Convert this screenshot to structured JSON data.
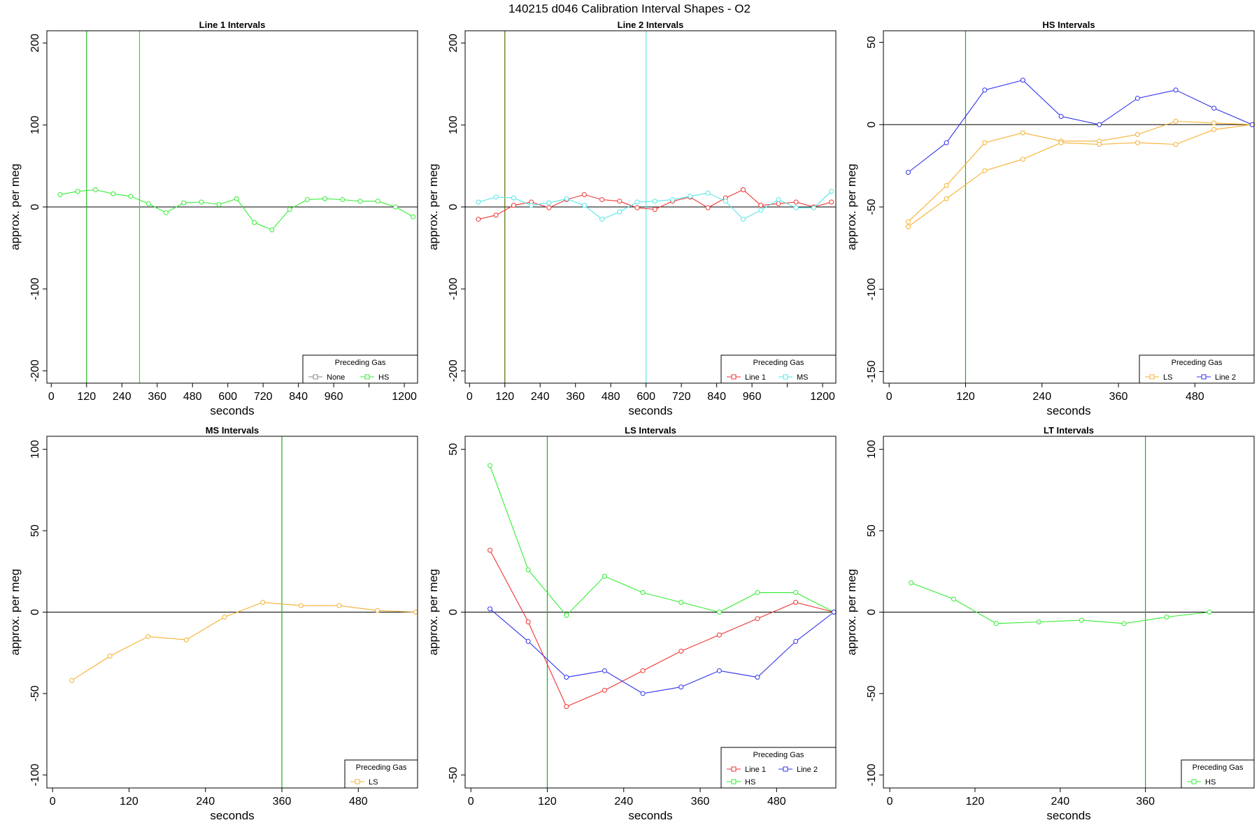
{
  "figure": {
    "title": "140215   d046   Calibration Interval Shapes - O2"
  },
  "chart_data": [
    {
      "type": "line",
      "title": "Line 1 Intervals",
      "xlabel": "seconds",
      "ylabel": "approx. per meg",
      "xlim": [
        -15,
        1245
      ],
      "ylim": [
        -215,
        215
      ],
      "xticks": [
        0,
        120,
        240,
        360,
        480,
        600,
        720,
        840,
        960,
        1080,
        1200
      ],
      "xtick_labels": [
        "0",
        "120",
        "240",
        "360",
        "480",
        "600",
        "720",
        "840",
        "960",
        "",
        "1200"
      ],
      "yticks": [
        -200,
        -100,
        0,
        100,
        200
      ],
      "zero_line": true,
      "vlines": [
        {
          "x": 120,
          "color": "#22bb22"
        },
        {
          "x": 300,
          "color": "#33dd33"
        }
      ],
      "legend": {
        "title": "Preceding Gas",
        "position": "bottom-right",
        "entries": [
          {
            "label": "None",
            "color": "#888888"
          },
          {
            "label": "HS",
            "color": "#33ee33"
          }
        ]
      },
      "series": [
        {
          "color": "#33ee33",
          "x": [
            30,
            90,
            150,
            210,
            270,
            330,
            390,
            450,
            510,
            570,
            630,
            690,
            750,
            810,
            870,
            930,
            990,
            1050,
            1110,
            1170,
            1230
          ],
          "y": [
            15,
            19,
            21,
            16,
            13,
            4,
            -7,
            5,
            6,
            3,
            10,
            -19,
            -28,
            -3,
            9,
            10,
            9,
            7,
            7,
            0,
            -12
          ]
        }
      ]
    },
    {
      "type": "line",
      "title": "Line 2 Intervals",
      "xlabel": "seconds",
      "ylabel": "approx. per meg",
      "xlim": [
        -15,
        1245
      ],
      "ylim": [
        -215,
        215
      ],
      "xticks": [
        0,
        120,
        240,
        360,
        480,
        600,
        720,
        840,
        960,
        1080,
        1200
      ],
      "xtick_labels": [
        "0",
        "120",
        "240",
        "360",
        "480",
        "600",
        "720",
        "840",
        "960",
        "",
        "1200"
      ],
      "yticks": [
        -200,
        -100,
        0,
        100,
        200
      ],
      "zero_line": true,
      "vlines": [
        {
          "x": 120,
          "color": "#5a6a00"
        },
        {
          "x": 600,
          "color": "#66e8e8"
        }
      ],
      "legend": {
        "title": "Preceding Gas",
        "position": "bottom-right",
        "entries": [
          {
            "label": "Line 1",
            "color": "#ee3333"
          },
          {
            "label": "MS",
            "color": "#55e6e6"
          }
        ]
      },
      "series": [
        {
          "color": "#ee3333",
          "x": [
            30,
            90,
            150,
            210,
            270,
            330,
            390,
            450,
            510,
            570,
            630,
            690,
            750,
            810,
            870,
            930,
            990,
            1050,
            1110,
            1170,
            1230
          ],
          "y": [
            -15,
            -10,
            2,
            6,
            -1,
            9,
            15,
            9,
            7,
            -1,
            -3,
            7,
            12,
            -1,
            11,
            21,
            2,
            4,
            6,
            0,
            6
          ]
        },
        {
          "color": "#55e6e6",
          "x": [
            30,
            90,
            150,
            210,
            270,
            330,
            390,
            450,
            510,
            570,
            630,
            690,
            750,
            810,
            870,
            930,
            990,
            1050,
            1110,
            1170,
            1230
          ],
          "y": [
            6,
            12,
            11,
            2,
            5,
            10,
            2,
            -15,
            -6,
            6,
            7,
            9,
            13,
            17,
            7,
            -15,
            -4,
            9,
            -1,
            -1,
            19
          ]
        }
      ]
    },
    {
      "type": "line",
      "title": "HS Intervals",
      "xlabel": "seconds",
      "ylabel": "approx. per meg",
      "xlim": [
        -9,
        573
      ],
      "ylim": [
        -157,
        57
      ],
      "xticks": [
        0,
        120,
        240,
        360,
        480
      ],
      "xtick_labels": [
        "0",
        "120",
        "240",
        "360",
        "480"
      ],
      "yticks": [
        -150,
        -100,
        -50,
        0,
        50
      ],
      "zero_line": true,
      "vlines": [
        {
          "x": 120,
          "color": "#22aa22"
        }
      ],
      "legend": {
        "title": "Preceding Gas",
        "position": "bottom-right",
        "entries": [
          {
            "label": "LS",
            "color": "#f5b030"
          },
          {
            "label": "Line 2",
            "color": "#3333ee"
          }
        ]
      },
      "series": [
        {
          "color": "#f5b030",
          "x": [
            30,
            90,
            150,
            210,
            270,
            330,
            390,
            450,
            510,
            570
          ],
          "y": [
            -59,
            -37,
            -11,
            -5,
            -10,
            -10,
            -6,
            2,
            1,
            0
          ]
        },
        {
          "color": "#f5b030",
          "x": [
            30,
            90,
            150,
            210,
            270,
            330,
            390,
            450,
            510,
            570
          ],
          "y": [
            -62,
            -45,
            -28,
            -21,
            -11,
            -12,
            -11,
            -12,
            -3,
            0
          ]
        },
        {
          "color": "#3333ee",
          "x": [
            30,
            90,
            150,
            210,
            270,
            330,
            390,
            450,
            510,
            570
          ],
          "y": [
            -29,
            -11,
            21,
            27,
            5,
            0,
            16,
            21,
            10,
            0
          ]
        }
      ]
    },
    {
      "type": "line",
      "title": "MS Intervals",
      "xlabel": "seconds",
      "ylabel": "approx. per meg",
      "xlim": [
        -9,
        573
      ],
      "ylim": [
        -108,
        108
      ],
      "xticks": [
        0,
        120,
        240,
        360,
        480
      ],
      "xtick_labels": [
        "0",
        "120",
        "240",
        "360",
        "480"
      ],
      "yticks": [
        -100,
        -50,
        0,
        50,
        100
      ],
      "zero_line": true,
      "vlines": [
        {
          "x": 360,
          "color": "#22aa22"
        }
      ],
      "legend": {
        "title": "Preceding Gas",
        "position": "bottom-right",
        "entries": [
          {
            "label": "LS",
            "color": "#f5b030"
          }
        ]
      },
      "series": [
        {
          "color": "#f5b030",
          "x": [
            30,
            90,
            150,
            210,
            270,
            330,
            390,
            450,
            510,
            570
          ],
          "y": [
            -42,
            -27,
            -15,
            -17,
            -3,
            6,
            4,
            4,
            1,
            0
          ]
        }
      ]
    },
    {
      "type": "line",
      "title": "LS Intervals",
      "xlabel": "seconds",
      "ylabel": "approx. per meg",
      "xlim": [
        -9,
        573
      ],
      "ylim": [
        -54,
        54
      ],
      "xticks": [
        0,
        120,
        240,
        360,
        480
      ],
      "xtick_labels": [
        "0",
        "120",
        "240",
        "360",
        "480"
      ],
      "yticks": [
        -50,
        0,
        50,
        100
      ],
      "zero_line": true,
      "vlines": [
        {
          "x": 120,
          "color": "#22aa22"
        }
      ],
      "legend": {
        "title": "Preceding Gas",
        "position": "bottom-right",
        "entries": [
          {
            "label": "Line 1",
            "color": "#ee3333"
          },
          {
            "label": "Line 2",
            "color": "#3333ee"
          },
          {
            "label": "HS",
            "color": "#33ee33"
          }
        ]
      },
      "series": [
        {
          "color": "#ee3333",
          "x": [
            30,
            90,
            150,
            210,
            270,
            330,
            390,
            450,
            510,
            570
          ],
          "y": [
            19,
            -3,
            -29,
            -24,
            -18,
            -12,
            -7,
            -2,
            3,
            0
          ]
        },
        {
          "color": "#33ee33",
          "x": [
            30,
            90,
            150,
            210,
            270,
            330,
            390,
            450,
            510,
            570
          ],
          "y": [
            45,
            13,
            -1,
            11,
            6,
            3,
            0,
            6,
            6,
            0
          ]
        },
        {
          "color": "#3333ee",
          "x": [
            30,
            90,
            150,
            210,
            270,
            330,
            390,
            450,
            510,
            570
          ],
          "y": [
            1,
            -9,
            -20,
            -18,
            -25,
            -23,
            -18,
            -20,
            -9,
            0
          ]
        }
      ]
    },
    {
      "type": "line",
      "title": "LT Intervals",
      "xlabel": "seconds",
      "ylabel": "approx. per meg",
      "xlim": [
        -9,
        513
      ],
      "ylim": [
        -108,
        108
      ],
      "xticks": [
        0,
        120,
        240,
        360
      ],
      "xtick_labels": [
        "0",
        "120",
        "240",
        "360"
      ],
      "yticks": [
        -100,
        -50,
        0,
        50,
        100
      ],
      "zero_line": true,
      "vlines": [
        {
          "x": 360,
          "color": "#22aa22"
        }
      ],
      "legend": {
        "title": "Preceding Gas",
        "position": "bottom-right",
        "entries": [
          {
            "label": "HS",
            "color": "#33ee33"
          }
        ]
      },
      "series": [
        {
          "color": "#33ee33",
          "x": [
            30,
            90,
            150,
            210,
            270,
            330,
            390,
            450
          ],
          "y": [
            18,
            8,
            -7,
            -6,
            -5,
            -7,
            -3,
            0
          ]
        }
      ]
    }
  ]
}
